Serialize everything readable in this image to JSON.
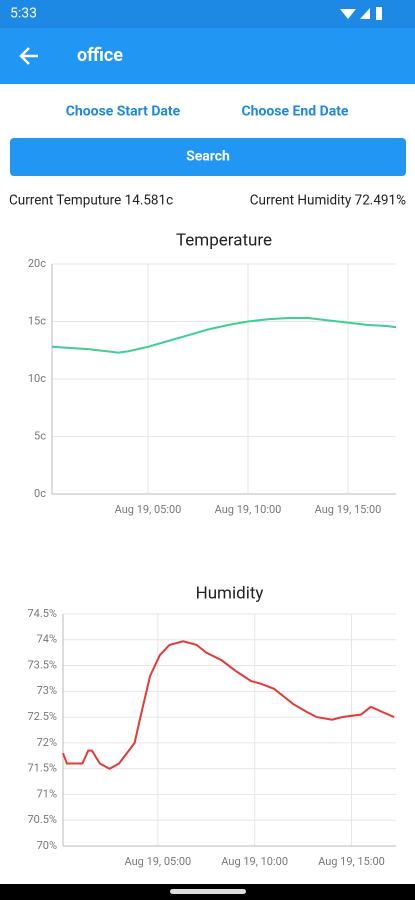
{
  "status_bar": {
    "time": "5:33"
  },
  "app_bar": {
    "title": "office"
  },
  "controls": {
    "start_date": "Choose Start Date",
    "end_date": "Choose End Date",
    "search": "Search"
  },
  "readings": {
    "temperature": "Current Temputure 14.581c",
    "humidity": "Current Humidity 72.491%"
  },
  "chart_data": [
    {
      "type": "line",
      "title": "Temperature",
      "color": "#3dcf93",
      "grid": true,
      "x": [
        0.2,
        1,
        2,
        3,
        3.5,
        4,
        5,
        6,
        7,
        8,
        9,
        10,
        11,
        12,
        13,
        14,
        15,
        16,
        17,
        17.4
      ],
      "values": [
        12.8,
        12.7,
        12.6,
        12.4,
        12.3,
        12.4,
        12.8,
        13.3,
        13.8,
        14.3,
        14.7,
        15.0,
        15.2,
        15.3,
        15.3,
        15.1,
        14.9,
        14.7,
        14.6,
        14.5
      ],
      "xlim": [
        0.2,
        17.4
      ],
      "xticks": [
        {
          "value": 5,
          "label": "Aug 19, 05:00"
        },
        {
          "value": 10,
          "label": "Aug 19, 10:00"
        },
        {
          "value": 15,
          "label": "Aug 19, 15:00"
        }
      ],
      "ylim": [
        0,
        20
      ],
      "yticks": [
        {
          "value": 0,
          "label": "0c"
        },
        {
          "value": 5,
          "label": "5c"
        },
        {
          "value": 10,
          "label": "10c"
        },
        {
          "value": 15,
          "label": "15c"
        },
        {
          "value": 20,
          "label": "20c"
        }
      ]
    },
    {
      "type": "line",
      "title": "Humidity",
      "color": "#e53935",
      "grid": true,
      "x": [
        0.1,
        0.3,
        1.1,
        1.4,
        1.6,
        2,
        2.5,
        3,
        3.5,
        3.8,
        4.1,
        4.6,
        5.1,
        5.6,
        6.3,
        7,
        7.5,
        8.3,
        9,
        9.8,
        10.3,
        11,
        11.5,
        12,
        12.7,
        13.2,
        14,
        14.5,
        15.5,
        16,
        16.6,
        17.2
      ],
      "values": [
        71.8,
        71.6,
        71.6,
        71.85,
        71.85,
        71.6,
        71.5,
        71.6,
        71.85,
        72,
        72.5,
        73.3,
        73.7,
        73.9,
        73.97,
        73.9,
        73.75,
        73.6,
        73.4,
        73.2,
        73.15,
        73.05,
        72.9,
        72.75,
        72.6,
        72.5,
        72.45,
        72.5,
        72.55,
        72.7,
        72.6,
        72.5
      ],
      "xlim": [
        0.1,
        17.3
      ],
      "xticks": [
        {
          "value": 5,
          "label": "Aug 19, 05:00"
        },
        {
          "value": 10,
          "label": "Aug 19, 10:00"
        },
        {
          "value": 15,
          "label": "Aug 19, 15:00"
        }
      ],
      "ylim": [
        70,
        74.5
      ],
      "yticks": [
        {
          "value": 70,
          "label": "70%"
        },
        {
          "value": 70.5,
          "label": "70.5%"
        },
        {
          "value": 71,
          "label": "71%"
        },
        {
          "value": 71.5,
          "label": "71.5%"
        },
        {
          "value": 72,
          "label": "72%"
        },
        {
          "value": 72.5,
          "label": "72.5%"
        },
        {
          "value": 73,
          "label": "73%"
        },
        {
          "value": 73.5,
          "label": "73.5%"
        },
        {
          "value": 74,
          "label": "74%"
        },
        {
          "value": 74.5,
          "label": "74.5%"
        }
      ]
    }
  ]
}
